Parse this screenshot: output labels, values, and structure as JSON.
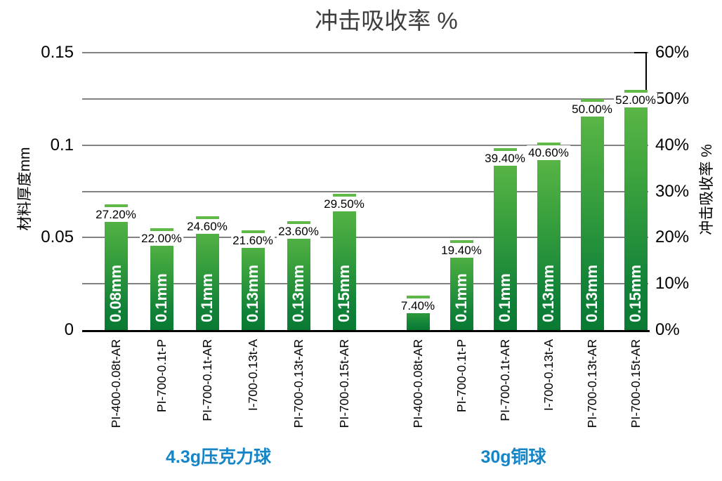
{
  "title": "冲击吸收率 %",
  "chart_data": {
    "type": "bar",
    "title": "冲击吸收率 %",
    "ylabel_left": "材料厚度mm",
    "ylabel_right": "冲击吸收率 %",
    "left_axis_ticks": [
      "0.15",
      "0.1",
      "0.05",
      "0"
    ],
    "right_axis_ticks": [
      "60%",
      "50%",
      "40%",
      "30%",
      "20%",
      "10%",
      "0%"
    ],
    "ylim_left_mm": [
      0,
      0.15
    ],
    "ylim_right_pct": [
      0,
      60
    ],
    "grid": "horizontal gray lines every 10% (0.025mm)",
    "legend": "none",
    "groups": [
      {
        "label": "4.3g压克力球",
        "bars": [
          {
            "category": "PI-400-0.08t-AR",
            "absorption_pct": 27.2,
            "value_label": "27.20%",
            "thickness_mm": 0.08,
            "inside_label": "0.08mm"
          },
          {
            "category": "PI-700-0.1t-P",
            "absorption_pct": 22.0,
            "value_label": "22.00%",
            "thickness_mm": 0.1,
            "inside_label": "0.1mm"
          },
          {
            "category": "PI-700-0.1t-AR",
            "absorption_pct": 24.6,
            "value_label": "24.60%",
            "thickness_mm": 0.1,
            "inside_label": "0.1mm"
          },
          {
            "category": "I-700-0.13t-A",
            "absorption_pct": 21.6,
            "value_label": "21.60%",
            "thickness_mm": 0.13,
            "inside_label": "0.13mm"
          },
          {
            "category": "PI-700-0.13t-AR",
            "absorption_pct": 23.6,
            "value_label": "23.60%",
            "thickness_mm": 0.13,
            "inside_label": "0.13mm"
          },
          {
            "category": "PI-700-0.15t-AR",
            "absorption_pct": 29.5,
            "value_label": "29.50%",
            "thickness_mm": 0.15,
            "inside_label": "0.15mm"
          }
        ]
      },
      {
        "label": "30g铜球",
        "bars": [
          {
            "category": "PI-400-0.08t-AR",
            "absorption_pct": 7.4,
            "value_label": "7.40%",
            "thickness_mm": 0.08,
            "inside_label": ""
          },
          {
            "category": "PI-700-0.1t-P",
            "absorption_pct": 19.4,
            "value_label": "19.40%",
            "thickness_mm": 0.1,
            "inside_label": "0.1mm"
          },
          {
            "category": "PI-700-0.1t-AR",
            "absorption_pct": 39.4,
            "value_label": "39.40%",
            "thickness_mm": 0.1,
            "inside_label": "0.1mm"
          },
          {
            "category": "I-700-0.13t-A",
            "absorption_pct": 40.6,
            "value_label": "40.60%",
            "thickness_mm": 0.13,
            "inside_label": "0.13mm"
          },
          {
            "category": "PI-700-0.13t-AR",
            "absorption_pct": 50.0,
            "value_label": "50.00%",
            "thickness_mm": 0.13,
            "inside_label": "0.13mm"
          },
          {
            "category": "PI-700-0.15t-AR",
            "absorption_pct": 52.0,
            "value_label": "52.00%",
            "thickness_mm": 0.15,
            "inside_label": "0.15mm"
          }
        ]
      }
    ],
    "colors": {
      "bar_gradient_top": "#61ba48",
      "bar_gradient_bottom": "#0a7a33",
      "gridline": "#828282",
      "axis": "#000000",
      "group_label": "#1685c6",
      "value_label_background": "#ffffff",
      "inside_label_text": "#ffffff"
    }
  }
}
